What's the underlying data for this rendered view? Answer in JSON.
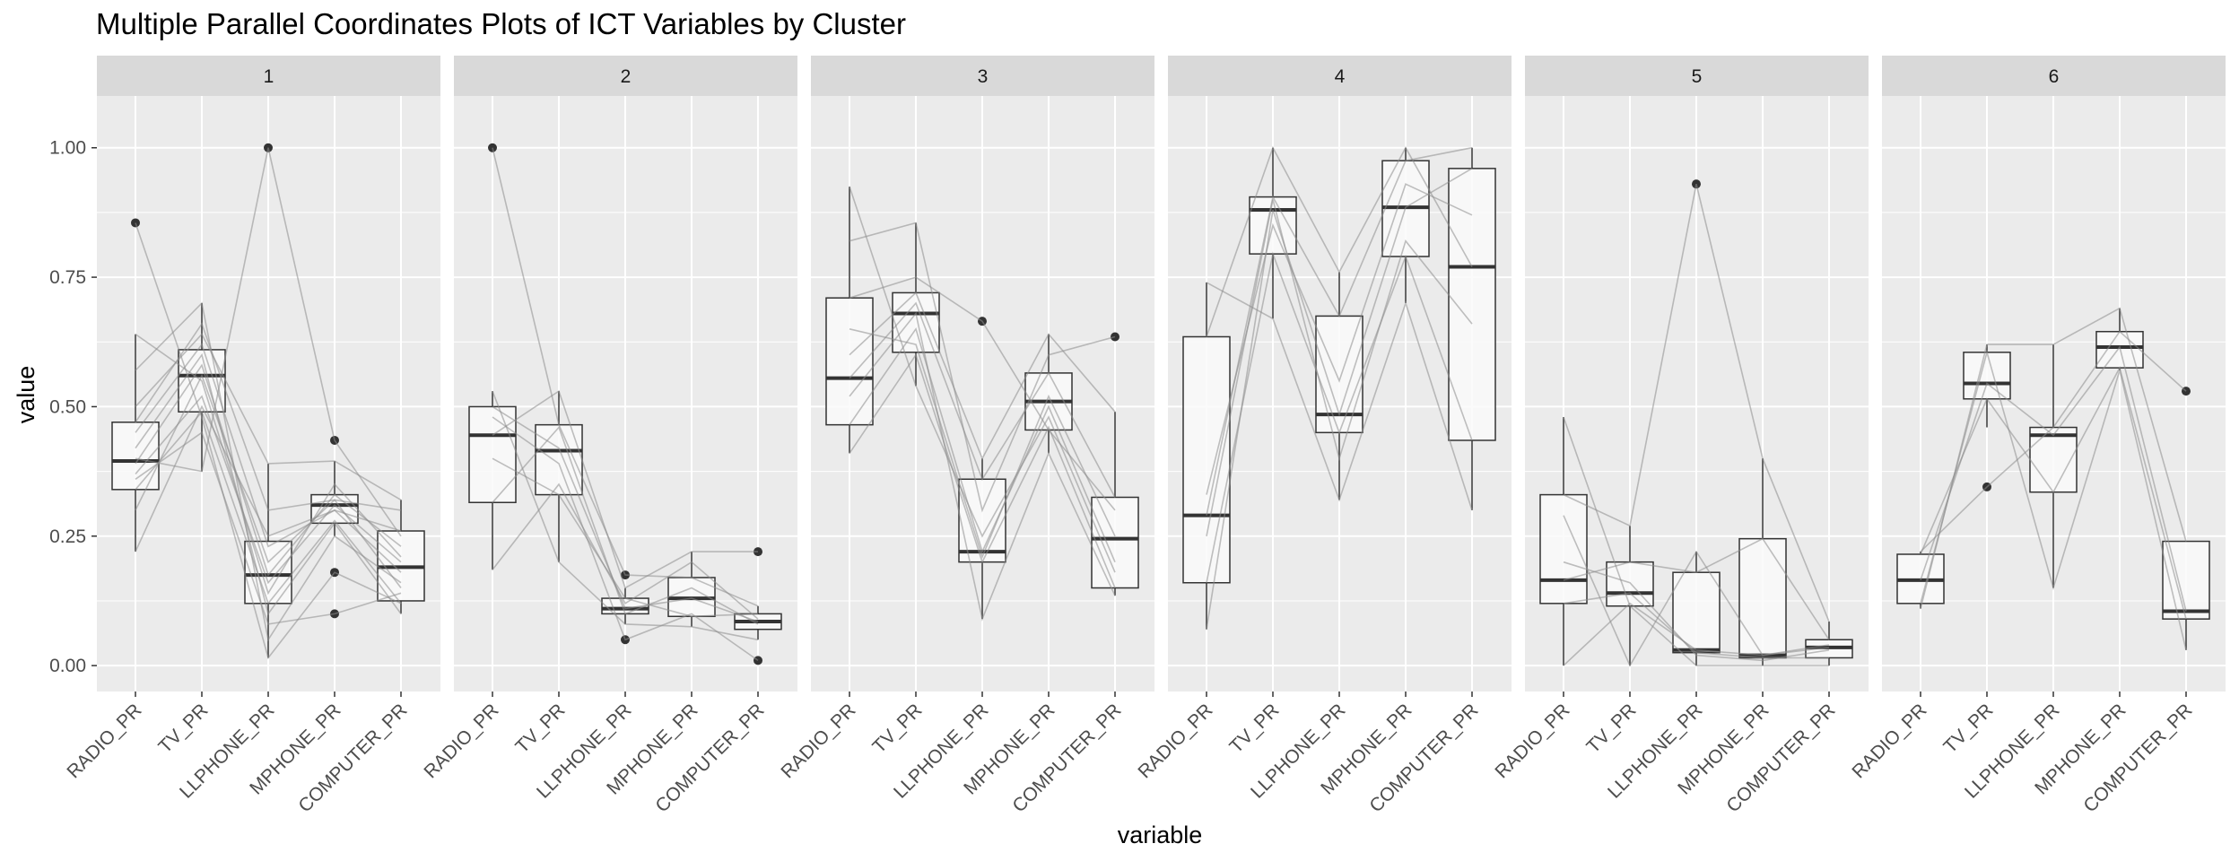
{
  "chart_data": {
    "type": "parallel-coordinates-boxplot",
    "title": "Multiple Parallel Coordinates Plots of ICT Variables by Cluster",
    "xlabel": "variable",
    "ylabel": "value",
    "ylim": [
      -0.05,
      1.1
    ],
    "y_ticks": [
      0.0,
      0.25,
      0.5,
      0.75,
      1.0
    ],
    "y_tick_labels": [
      "0.00",
      "0.25",
      "0.50",
      "0.75",
      "1.00"
    ],
    "variables": [
      "RADIO_PR",
      "TV_PR",
      "LLPHONE_PR",
      "MPHONE_PR",
      "COMPUTER_PR"
    ],
    "grid": true,
    "legend": "none",
    "colors": {
      "panel_bg": "#ebebeb",
      "strip_bg": "#d9d9d9",
      "grid": "#ffffff",
      "box_fill": "#fafafa",
      "box_line": "#333333",
      "line": "#8c8c8c",
      "outlier": "#333333",
      "text": "#4d4d4d"
    },
    "facets": [
      {
        "label": "1",
        "boxes": [
          {
            "q1": 0.34,
            "median": 0.395,
            "q3": 0.47,
            "wlow": 0.22,
            "whigh": 0.64,
            "outliers": [
              0.855
            ]
          },
          {
            "q1": 0.49,
            "median": 0.56,
            "q3": 0.61,
            "wlow": 0.375,
            "whigh": 0.7,
            "outliers": []
          },
          {
            "q1": 0.12,
            "median": 0.175,
            "q3": 0.24,
            "wlow": 0.015,
            "whigh": 0.39,
            "outliers": [
              1.0
            ]
          },
          {
            "q1": 0.275,
            "median": 0.31,
            "q3": 0.33,
            "wlow": 0.25,
            "whigh": 0.395,
            "outliers": [
              0.435,
              0.18,
              0.1
            ]
          },
          {
            "q1": 0.125,
            "median": 0.19,
            "q3": 0.26,
            "wlow": 0.1,
            "whigh": 0.32,
            "outliers": []
          }
        ],
        "lines": [
          [
            0.22,
            0.5,
            0.25,
            0.3,
            0.18
          ],
          [
            0.3,
            0.56,
            0.2,
            0.32,
            0.15
          ],
          [
            0.34,
            0.49,
            0.12,
            0.28,
            0.12
          ],
          [
            0.37,
            0.52,
            0.16,
            0.31,
            0.2
          ],
          [
            0.39,
            0.58,
            0.175,
            0.33,
            0.23
          ],
          [
            0.42,
            0.6,
            0.1,
            0.275,
            0.1
          ],
          [
            0.45,
            0.62,
            0.23,
            0.3,
            0.26
          ],
          [
            0.47,
            0.66,
            0.3,
            0.32,
            0.3
          ],
          [
            0.5,
            0.64,
            0.39,
            0.395,
            0.32
          ],
          [
            0.57,
            0.7,
            0.05,
            0.25,
            0.16
          ],
          [
            0.64,
            0.55,
            0.14,
            0.35,
            0.21
          ],
          [
            0.855,
            0.48,
            0.015,
            0.18,
            0.12
          ],
          [
            0.4,
            0.375,
            1.0,
            0.435,
            0.25
          ],
          [
            0.36,
            0.45,
            0.08,
            0.1,
            0.14
          ]
        ]
      },
      {
        "label": "2",
        "boxes": [
          {
            "q1": 0.315,
            "median": 0.445,
            "q3": 0.5,
            "wlow": 0.185,
            "whigh": 0.53,
            "outliers": [
              1.0
            ]
          },
          {
            "q1": 0.33,
            "median": 0.415,
            "q3": 0.465,
            "wlow": 0.2,
            "whigh": 0.53,
            "outliers": []
          },
          {
            "q1": 0.1,
            "median": 0.11,
            "q3": 0.13,
            "wlow": 0.08,
            "whigh": 0.15,
            "outliers": [
              0.175,
              0.05
            ]
          },
          {
            "q1": 0.095,
            "median": 0.13,
            "q3": 0.17,
            "wlow": 0.075,
            "whigh": 0.22,
            "outliers": []
          },
          {
            "q1": 0.07,
            "median": 0.085,
            "q3": 0.1,
            "wlow": 0.05,
            "whigh": 0.115,
            "outliers": [
              0.22,
              0.01
            ]
          }
        ],
        "lines": [
          [
            0.185,
            0.35,
            0.12,
            0.2,
            0.09
          ],
          [
            0.315,
            0.46,
            0.1,
            0.15,
            0.08
          ],
          [
            0.445,
            0.53,
            0.15,
            0.22,
            0.22
          ],
          [
            0.5,
            0.42,
            0.11,
            0.13,
            0.085
          ],
          [
            0.53,
            0.2,
            0.08,
            0.075,
            0.05
          ],
          [
            0.4,
            0.33,
            0.13,
            0.095,
            0.1
          ],
          [
            1.0,
            0.465,
            0.175,
            0.17,
            0.115
          ],
          [
            0.48,
            0.39,
            0.05,
            0.1,
            0.01
          ]
        ]
      },
      {
        "label": "3",
        "boxes": [
          {
            "q1": 0.465,
            "median": 0.555,
            "q3": 0.71,
            "wlow": 0.41,
            "whigh": 0.925,
            "outliers": []
          },
          {
            "q1": 0.605,
            "median": 0.68,
            "q3": 0.72,
            "wlow": 0.54,
            "whigh": 0.855,
            "outliers": []
          },
          {
            "q1": 0.2,
            "median": 0.22,
            "q3": 0.36,
            "wlow": 0.09,
            "whigh": 0.4,
            "outliers": [
              0.665
            ]
          },
          {
            "q1": 0.455,
            "median": 0.51,
            "q3": 0.565,
            "wlow": 0.41,
            "whigh": 0.64,
            "outliers": []
          },
          {
            "q1": 0.15,
            "median": 0.245,
            "q3": 0.325,
            "wlow": 0.135,
            "whigh": 0.49,
            "outliers": [
              0.635
            ]
          }
        ],
        "lines": [
          [
            0.41,
            0.6,
            0.2,
            0.46,
            0.15
          ],
          [
            0.465,
            0.65,
            0.22,
            0.5,
            0.2
          ],
          [
            0.52,
            0.68,
            0.09,
            0.41,
            0.135
          ],
          [
            0.555,
            0.7,
            0.36,
            0.565,
            0.325
          ],
          [
            0.6,
            0.72,
            0.4,
            0.64,
            0.49
          ],
          [
            0.65,
            0.62,
            0.21,
            0.52,
            0.25
          ],
          [
            0.71,
            0.75,
            0.665,
            0.455,
            0.3
          ],
          [
            0.82,
            0.855,
            0.3,
            0.6,
            0.635
          ],
          [
            0.925,
            0.54,
            0.25,
            0.48,
            0.18
          ]
        ]
      },
      {
        "label": "4",
        "boxes": [
          {
            "q1": 0.16,
            "median": 0.29,
            "q3": 0.635,
            "wlow": 0.07,
            "whigh": 0.74,
            "outliers": []
          },
          {
            "q1": 0.795,
            "median": 0.88,
            "q3": 0.905,
            "wlow": 0.67,
            "whigh": 1.0,
            "outliers": []
          },
          {
            "q1": 0.45,
            "median": 0.485,
            "q3": 0.675,
            "wlow": 0.32,
            "whigh": 0.76,
            "outliers": []
          },
          {
            "q1": 0.79,
            "median": 0.885,
            "q3": 0.975,
            "wlow": 0.7,
            "whigh": 1.0,
            "outliers": []
          },
          {
            "q1": 0.435,
            "median": 0.77,
            "q3": 0.96,
            "wlow": 0.3,
            "whigh": 1.0,
            "outliers": []
          }
        ],
        "lines": [
          [
            0.07,
            0.88,
            0.485,
            0.885,
            0.96
          ],
          [
            0.16,
            0.795,
            0.45,
            0.79,
            0.435
          ],
          [
            0.29,
            0.905,
            0.675,
            0.975,
            1.0
          ],
          [
            0.635,
            1.0,
            0.76,
            1.0,
            0.77
          ],
          [
            0.74,
            0.67,
            0.32,
            0.7,
            0.3
          ],
          [
            0.33,
            0.85,
            0.55,
            0.93,
            0.87
          ],
          [
            0.25,
            0.9,
            0.4,
            0.82,
            0.66
          ]
        ]
      },
      {
        "label": "5",
        "boxes": [
          {
            "q1": 0.12,
            "median": 0.165,
            "q3": 0.33,
            "wlow": 0.0,
            "whigh": 0.48,
            "outliers": []
          },
          {
            "q1": 0.115,
            "median": 0.14,
            "q3": 0.2,
            "wlow": 0.0,
            "whigh": 0.27,
            "outliers": []
          },
          {
            "q1": 0.025,
            "median": 0.03,
            "q3": 0.18,
            "wlow": 0.0,
            "whigh": 0.22,
            "outliers": [
              0.93
            ]
          },
          {
            "q1": 0.015,
            "median": 0.02,
            "q3": 0.245,
            "wlow": 0.0,
            "whigh": 0.4,
            "outliers": []
          },
          {
            "q1": 0.015,
            "median": 0.035,
            "q3": 0.05,
            "wlow": 0.0,
            "whigh": 0.085,
            "outliers": []
          }
        ],
        "lines": [
          [
            0.0,
            0.12,
            0.03,
            0.02,
            0.035
          ],
          [
            0.12,
            0.14,
            0.025,
            0.015,
            0.015
          ],
          [
            0.165,
            0.2,
            0.18,
            0.245,
            0.05
          ],
          [
            0.33,
            0.27,
            0.93,
            0.4,
            0.085
          ],
          [
            0.48,
            0.115,
            0.0,
            0.0,
            0.0
          ],
          [
            0.29,
            0.0,
            0.22,
            0.02,
            0.04
          ],
          [
            0.2,
            0.16,
            0.02,
            0.01,
            0.03
          ]
        ]
      },
      {
        "label": "6",
        "boxes": [
          {
            "q1": 0.12,
            "median": 0.165,
            "q3": 0.215,
            "wlow": 0.11,
            "whigh": 0.22,
            "outliers": []
          },
          {
            "q1": 0.515,
            "median": 0.545,
            "q3": 0.605,
            "wlow": 0.46,
            "whigh": 0.62,
            "outliers": [
              0.345
            ]
          },
          {
            "q1": 0.335,
            "median": 0.445,
            "q3": 0.46,
            "wlow": 0.15,
            "whigh": 0.62,
            "outliers": []
          },
          {
            "q1": 0.575,
            "median": 0.615,
            "q3": 0.645,
            "wlow": 0.57,
            "whigh": 0.69,
            "outliers": []
          },
          {
            "q1": 0.09,
            "median": 0.105,
            "q3": 0.24,
            "wlow": 0.03,
            "whigh": 0.24,
            "outliers": [
              0.53
            ]
          }
        ],
        "lines": [
          [
            0.11,
            0.62,
            0.62,
            0.69,
            0.24
          ],
          [
            0.165,
            0.545,
            0.445,
            0.615,
            0.105
          ],
          [
            0.215,
            0.515,
            0.335,
            0.575,
            0.09
          ],
          [
            0.22,
            0.345,
            0.46,
            0.645,
            0.53
          ],
          [
            0.12,
            0.605,
            0.15,
            0.57,
            0.03
          ]
        ]
      }
    ]
  }
}
